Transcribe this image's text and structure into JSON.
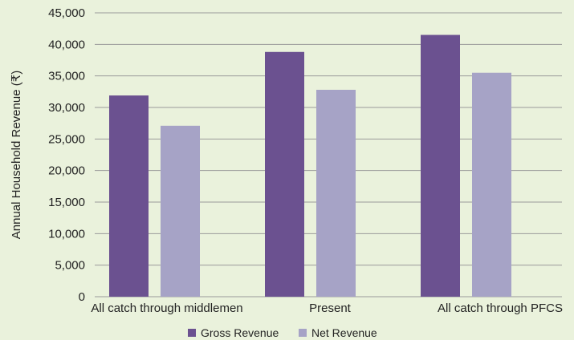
{
  "chart_data": {
    "type": "bar",
    "categories": [
      "All catch through middlemen",
      "Present",
      "All catch through PFCS"
    ],
    "series": [
      {
        "name": "Gross Revenue",
        "values": [
          31900,
          38800,
          41500
        ],
        "color": "#6b5190"
      },
      {
        "name": "Net Revenue",
        "values": [
          27100,
          32800,
          35500
        ],
        "color": "#a6a3c6"
      }
    ],
    "title": "",
    "xlabel": "",
    "ylabel": "Annual Household Revenue (₹)",
    "ylim": [
      0,
      45000
    ],
    "yticks": [
      0,
      5000,
      10000,
      15000,
      20000,
      25000,
      30000,
      35000,
      40000,
      45000
    ],
    "ytick_labels": [
      "0",
      "5,000",
      "10,000",
      "15,000",
      "20,000",
      "25,000",
      "30,000",
      "35,000",
      "40,000",
      "45,000"
    ],
    "grid": true,
    "legend": "bottom-center",
    "background": "#eaf2dc",
    "grid_color": "#9a9a9a"
  }
}
